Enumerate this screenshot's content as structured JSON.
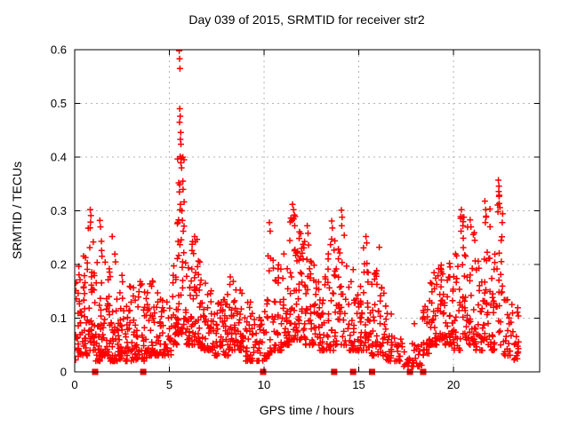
{
  "colors": {
    "marker": "#ff0000",
    "grid": "#b4b4b4",
    "axis": "#000000",
    "text": "#000000",
    "background": "#ffffff"
  },
  "chart_data": {
    "type": "scatter",
    "title": "Day 039 of 2015, SRMTID for receiver str2",
    "xlabel": "GPS time / hours",
    "ylabel": "SRMTID / TECUs",
    "xlim": [
      0,
      24.55
    ],
    "ylim": [
      0,
      0.6
    ],
    "xticks": [
      0,
      5,
      10,
      15,
      20
    ],
    "xtick_labels": [
      "0",
      "5",
      "10",
      "15",
      "20"
    ],
    "yticks": [
      0,
      0.1,
      0.2,
      0.3,
      0.4,
      0.5,
      0.6
    ],
    "ytick_labels": [
      "0",
      "0.1",
      "0.2",
      "0.3",
      "0.4",
      "0.5",
      "0.6"
    ],
    "grid": true,
    "grid_style": "dashed",
    "legend": false,
    "marker": {
      "shape": "plus",
      "color": "#ff0000",
      "size": 7
    },
    "zero_markers": {
      "shape": "filled-square",
      "color": "#ff0000",
      "size": 7,
      "y": 0,
      "x": [
        1.08,
        3.62,
        9.95,
        13.7,
        14.7,
        15.7,
        17.7,
        18.4
      ]
    },
    "spike_points": [
      [
        5.52,
        0.598
      ],
      [
        5.54,
        0.583
      ],
      [
        5.56,
        0.565
      ],
      [
        5.55,
        0.49
      ],
      [
        5.57,
        0.476
      ],
      [
        5.54,
        0.465
      ],
      [
        5.6,
        0.446
      ],
      [
        5.58,
        0.433
      ],
      [
        5.61,
        0.424
      ],
      [
        5.57,
        0.401
      ],
      [
        5.63,
        0.398
      ],
      [
        5.64,
        0.38
      ],
      [
        5.49,
        0.352
      ],
      [
        5.53,
        0.335
      ],
      [
        5.58,
        0.312
      ],
      [
        5.66,
        0.3
      ],
      [
        5.69,
        0.282
      ],
      [
        5.73,
        0.262
      ],
      [
        5.46,
        0.243
      ],
      [
        5.76,
        0.222
      ],
      [
        5.7,
        0.205
      ],
      [
        0.82,
        0.302
      ],
      [
        0.86,
        0.291
      ],
      [
        0.84,
        0.279
      ],
      [
        1.33,
        0.282
      ],
      [
        1.36,
        0.27
      ],
      [
        1.98,
        0.252
      ],
      [
        6.33,
        0.252
      ],
      [
        6.37,
        0.242
      ],
      [
        10.28,
        0.278
      ],
      [
        10.32,
        0.262
      ],
      [
        11.5,
        0.312
      ],
      [
        11.55,
        0.302
      ],
      [
        11.6,
        0.292
      ],
      [
        11.47,
        0.282
      ],
      [
        11.62,
        0.272
      ],
      [
        12.28,
        0.272
      ],
      [
        12.32,
        0.258
      ],
      [
        13.57,
        0.281
      ],
      [
        13.61,
        0.268
      ],
      [
        14.08,
        0.301
      ],
      [
        14.12,
        0.288
      ],
      [
        14.1,
        0.272
      ],
      [
        15.38,
        0.252
      ],
      [
        15.42,
        0.24
      ],
      [
        16.08,
        0.232
      ],
      [
        20.42,
        0.302
      ],
      [
        20.47,
        0.288
      ],
      [
        20.5,
        0.272
      ],
      [
        20.4,
        0.262
      ],
      [
        20.88,
        0.283
      ],
      [
        20.92,
        0.27
      ],
      [
        21.66,
        0.318
      ],
      [
        21.7,
        0.302
      ],
      [
        21.73,
        0.29
      ],
      [
        21.68,
        0.278
      ],
      [
        22.37,
        0.357
      ],
      [
        22.4,
        0.346
      ],
      [
        22.39,
        0.336
      ],
      [
        22.42,
        0.329
      ],
      [
        22.45,
        0.306
      ],
      [
        22.35,
        0.298
      ]
    ],
    "density_profile": [
      [
        0.0,
        0.35,
        30,
        0.02,
        0.2,
        2.0
      ],
      [
        0.35,
        0.7,
        32,
        0.03,
        0.22,
        2.0
      ],
      [
        0.7,
        1.05,
        36,
        0.04,
        0.28,
        2.0
      ],
      [
        1.05,
        1.45,
        36,
        0.02,
        0.26,
        2.0
      ],
      [
        1.45,
        1.85,
        34,
        0.03,
        0.24,
        2.0
      ],
      [
        1.85,
        2.25,
        34,
        0.02,
        0.22,
        2.1
      ],
      [
        2.25,
        2.65,
        30,
        0.02,
        0.19,
        2.1
      ],
      [
        2.65,
        3.05,
        28,
        0.02,
        0.16,
        2.1
      ],
      [
        3.05,
        3.45,
        28,
        0.02,
        0.16,
        2.1
      ],
      [
        3.45,
        3.85,
        28,
        0.02,
        0.17,
        2.1
      ],
      [
        3.85,
        4.25,
        28,
        0.03,
        0.18,
        2.1
      ],
      [
        4.25,
        4.65,
        26,
        0.03,
        0.15,
        2.1
      ],
      [
        4.65,
        5.1,
        26,
        0.03,
        0.13,
        2.1
      ],
      [
        5.1,
        5.4,
        22,
        0.05,
        0.2,
        2.0
      ],
      [
        5.4,
        5.8,
        40,
        0.07,
        0.4,
        1.7
      ],
      [
        5.8,
        6.15,
        26,
        0.05,
        0.22,
        2.0
      ],
      [
        6.15,
        6.55,
        34,
        0.05,
        0.25,
        2.0
      ],
      [
        6.55,
        6.95,
        32,
        0.04,
        0.21,
        2.0
      ],
      [
        6.95,
        7.35,
        28,
        0.04,
        0.17,
        2.1
      ],
      [
        7.35,
        7.75,
        24,
        0.03,
        0.13,
        2.1
      ],
      [
        7.75,
        8.15,
        28,
        0.03,
        0.15,
        2.1
      ],
      [
        8.15,
        8.55,
        30,
        0.04,
        0.18,
        2.1
      ],
      [
        8.55,
        8.95,
        28,
        0.04,
        0.16,
        2.1
      ],
      [
        8.95,
        9.35,
        24,
        0.02,
        0.13,
        2.1
      ],
      [
        9.35,
        9.75,
        20,
        0.02,
        0.11,
        2.1
      ],
      [
        9.75,
        10.15,
        20,
        0.02,
        0.12,
        2.1
      ],
      [
        10.15,
        10.55,
        26,
        0.03,
        0.22,
        2.1
      ],
      [
        10.55,
        10.95,
        28,
        0.04,
        0.2,
        2.1
      ],
      [
        10.95,
        11.35,
        30,
        0.05,
        0.22,
        2.0
      ],
      [
        11.35,
        11.75,
        34,
        0.06,
        0.3,
        1.9
      ],
      [
        11.75,
        12.15,
        32,
        0.06,
        0.28,
        1.9
      ],
      [
        12.15,
        12.55,
        30,
        0.05,
        0.26,
        2.0
      ],
      [
        12.55,
        12.95,
        28,
        0.05,
        0.2,
        2.0
      ],
      [
        12.95,
        13.35,
        26,
        0.04,
        0.18,
        2.1
      ],
      [
        13.35,
        13.75,
        28,
        0.04,
        0.26,
        2.0
      ],
      [
        13.75,
        14.35,
        34,
        0.05,
        0.28,
        2.0
      ],
      [
        14.35,
        14.85,
        28,
        0.04,
        0.2,
        2.1
      ],
      [
        14.85,
        15.25,
        26,
        0.04,
        0.18,
        2.1
      ],
      [
        15.25,
        15.65,
        28,
        0.04,
        0.24,
        2.0
      ],
      [
        15.65,
        16.05,
        28,
        0.03,
        0.19,
        2.0
      ],
      [
        16.05,
        16.45,
        24,
        0.03,
        0.2,
        2.1
      ],
      [
        16.45,
        16.85,
        18,
        0.02,
        0.12,
        2.1
      ],
      [
        16.85,
        17.35,
        16,
        0.02,
        0.1,
        2.1
      ],
      [
        17.35,
        17.85,
        13,
        0.01,
        0.08,
        2.1
      ],
      [
        17.85,
        18.35,
        16,
        0.01,
        0.09,
        2.1
      ],
      [
        18.35,
        18.75,
        26,
        0.03,
        0.14,
        2.1
      ],
      [
        18.75,
        19.15,
        30,
        0.05,
        0.19,
        2.0
      ],
      [
        19.15,
        19.55,
        32,
        0.06,
        0.23,
        2.0
      ],
      [
        19.55,
        19.95,
        28,
        0.05,
        0.21,
        2.0
      ],
      [
        19.95,
        20.35,
        26,
        0.04,
        0.22,
        2.0
      ],
      [
        20.35,
        20.75,
        30,
        0.06,
        0.29,
        1.9
      ],
      [
        20.75,
        21.15,
        28,
        0.05,
        0.27,
        2.0
      ],
      [
        21.15,
        21.55,
        26,
        0.04,
        0.22,
        2.0
      ],
      [
        21.55,
        21.95,
        28,
        0.05,
        0.31,
        1.9
      ],
      [
        21.95,
        22.3,
        24,
        0.04,
        0.25,
        2.0
      ],
      [
        22.3,
        22.65,
        22,
        0.05,
        0.33,
        1.8
      ],
      [
        22.65,
        23.05,
        20,
        0.03,
        0.17,
        2.0
      ],
      [
        23.05,
        23.45,
        18,
        0.02,
        0.15,
        2.0
      ]
    ],
    "seed": 2015039
  }
}
